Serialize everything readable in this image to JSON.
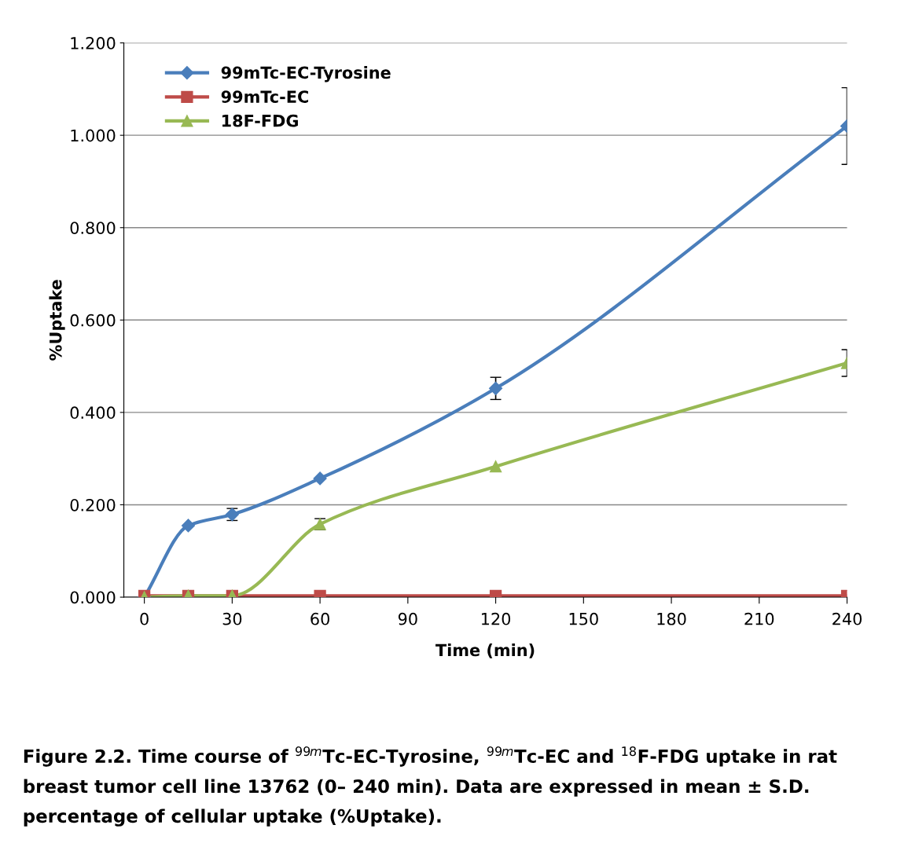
{
  "chart_data": {
    "type": "line",
    "xlabel": "Time (min)",
    "ylabel": "%Uptake",
    "x": [
      0,
      15,
      30,
      60,
      120,
      240
    ],
    "series": [
      {
        "name": "99mTc-EC-Tyrosine",
        "color": "#4a7ebb",
        "marker": "diamond",
        "values": [
          0.0,
          0.155,
          0.179,
          0.257,
          0.452,
          1.02
        ],
        "errors": [
          null,
          null,
          0.013,
          null,
          0.024,
          0.083
        ]
      },
      {
        "name": "99mTc-EC",
        "color": "#be4b48",
        "marker": "square",
        "values": [
          0.003,
          0.003,
          0.003,
          0.003,
          0.003,
          0.003
        ]
      },
      {
        "name": "18F-FDG",
        "color": "#98b954",
        "marker": "triangle",
        "values": [
          0.0,
          0.003,
          0.003,
          0.158,
          0.283,
          0.507
        ],
        "errors": [
          null,
          null,
          null,
          0.012,
          null,
          0.029
        ]
      }
    ],
    "xlim": [
      -7,
      240
    ],
    "xticks": [
      0,
      30,
      60,
      90,
      120,
      150,
      180,
      210,
      240
    ],
    "ylim": [
      0,
      1.2
    ],
    "yticks": [
      {
        "value": 0,
        "label": "0.000"
      },
      {
        "value": 0.2,
        "label": "0.200"
      },
      {
        "value": 0.4,
        "label": "0.400"
      },
      {
        "value": 0.6,
        "label": "0.600"
      },
      {
        "value": 0.8,
        "label": "0.800"
      },
      {
        "value": 1.0,
        "label": "1.000"
      },
      {
        "value": 1.2,
        "label": "1.200"
      }
    ],
    "grid": "y",
    "legend": "top left",
    "line_style": "solid",
    "annotations": [
      "Figure 2.2. Time course of $^{99m}$Tc-EC-Tyrosine, $^{99m}$Tc-EC and $^{18}$F-FDG uptake in rat breast tumor cell line 13762 (0– 240 min). Data are expressed in mean ± S.D. percentage of cellular uptake (%Uptake)."
    ]
  }
}
